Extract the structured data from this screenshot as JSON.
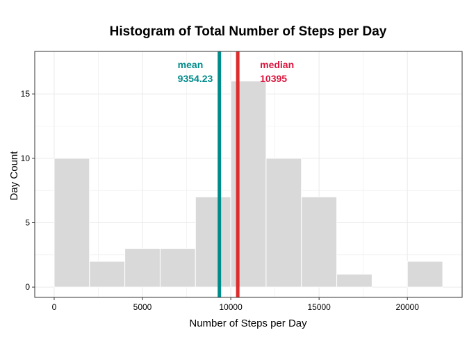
{
  "chart_data": {
    "type": "bar",
    "title": "Histogram of Total Number of Steps per Day",
    "xlabel": "Number of Steps per Day",
    "ylabel": "Day Count",
    "xlim": [
      -1100,
      23100
    ],
    "ylim": [
      -0.8,
      18.3
    ],
    "x_ticks": [
      0,
      5000,
      10000,
      15000,
      20000
    ],
    "y_ticks": [
      0,
      5,
      10,
      15
    ],
    "bin_width": 2000,
    "bins": [
      {
        "x0": 0,
        "x1": 2000,
        "count": 10
      },
      {
        "x0": 2000,
        "x1": 4000,
        "count": 2
      },
      {
        "x0": 4000,
        "x1": 6000,
        "count": 3
      },
      {
        "x0": 6000,
        "x1": 8000,
        "count": 3
      },
      {
        "x0": 8000,
        "x1": 10000,
        "count": 7
      },
      {
        "x0": 10000,
        "x1": 12000,
        "count": 16
      },
      {
        "x0": 12000,
        "x1": 14000,
        "count": 10
      },
      {
        "x0": 14000,
        "x1": 16000,
        "count": 7
      },
      {
        "x0": 16000,
        "x1": 18000,
        "count": 1
      },
      {
        "x0": 18000,
        "x1": 20000,
        "count": 0
      },
      {
        "x0": 20000,
        "x1": 22000,
        "count": 2
      }
    ],
    "vlines": [
      {
        "name": "mean",
        "value": 9354.23,
        "label": "mean",
        "value_label": "9354.23",
        "color": "#008b8b"
      },
      {
        "name": "median",
        "value": 10395,
        "label": "median",
        "value_label": "10395",
        "color": "#dc2c2c",
        "text_color": "#dc143c"
      }
    ],
    "bar_fill": "#d9d9d9",
    "bar_edge": "#ffffff",
    "panel_background": "#ffffff",
    "panel_border": "#333333",
    "grid": true,
    "grid_color": "#ebebeb"
  }
}
